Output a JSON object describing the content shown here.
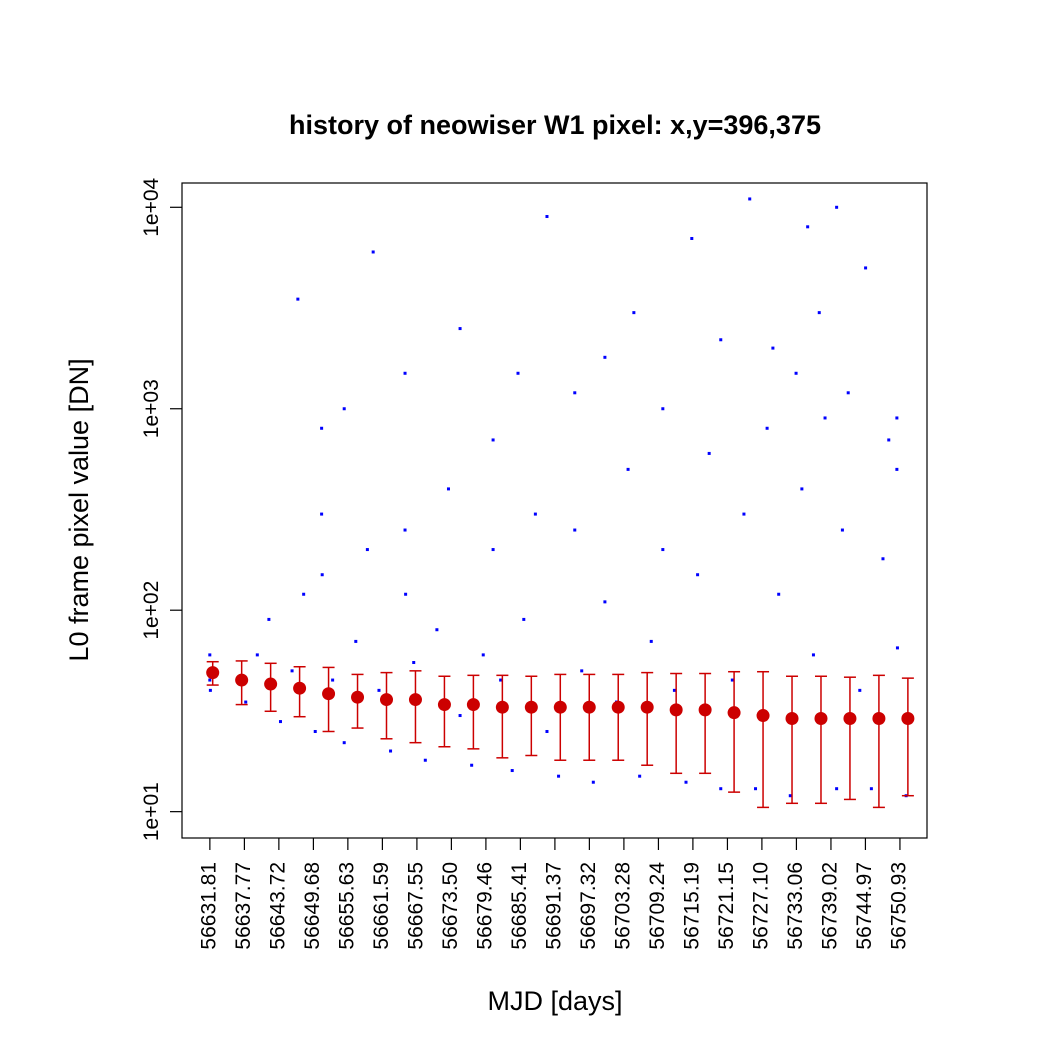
{
  "chart_data": {
    "type": "scatter",
    "title": "history of neowiser W1 pixel: x,y=396,375",
    "xlabel": "MJD [days]",
    "ylabel": "L0 frame pixel value [DN]",
    "xlim": [
      56627.0,
      56755.6
    ],
    "ylim": [
      7.4,
      13200
    ],
    "ylog": true,
    "xticks": [
      56631.81,
      56637.77,
      56643.72,
      56649.68,
      56655.63,
      56661.59,
      56667.55,
      {
        "value": 56673.5,
        "label": "56673.50"
      },
      56679.46,
      56685.41,
      56691.37,
      56697.32,
      56703.28,
      56709.24,
      56715.19,
      56721.15,
      {
        "value": 56727.1,
        "label": "56727.10"
      },
      56733.06,
      56739.02,
      56744.97,
      56750.93
    ],
    "yticks": [
      {
        "value": 10,
        "label": "1e+01"
      },
      {
        "value": 100,
        "label": "1e+02"
      },
      {
        "value": 1000,
        "label": "1e+03"
      },
      {
        "value": 10000,
        "label": "1e+04"
      }
    ],
    "series": [
      {
        "color": "#0000ff",
        "x": [
          56638,
          56640,
          56642,
          56644,
          56646,
          56648,
          56650,
          56651.1,
          56651.1,
          56651.2,
          56653,
          56655,
          56657,
          56659,
          56661,
          56663,
          56665.5,
          56665.5,
          56665.6,
          56667,
          56669,
          56671,
          56673,
          56675,
          56677,
          56679,
          56680.7,
          56680.7,
          56682,
          56684,
          56686,
          56688,
          56690,
          56692,
          56694.8,
          56694.8,
          56696,
          56698,
          56700,
          56702,
          56704,
          56706,
          56708,
          56710,
          56710,
          56712,
          56714,
          56716,
          56718,
          56720,
          56722,
          56724,
          56726,
          56728,
          56729,
          56730,
          56732,
          56733,
          56734,
          56736,
          56737,
          56738,
          56740,
          56741,
          56742,
          56744,
          56745,
          56746,
          56748,
          56749,
          56750.4,
          56750.4,
          56750.5,
          56752,
          56647,
          56660,
          56675,
          56690,
          56700,
          56715,
          56725,
          56740,
          56655,
          56685,
          56705,
          56720,
          56735,
          56631.8,
          56631.8,
          56631.9
        ],
        "values": [
          35,
          60,
          90,
          28,
          50,
          120,
          25,
          300,
          800,
          150,
          45,
          22,
          70,
          200,
          40,
          20,
          250,
          1500,
          120,
          55,
          18,
          80,
          400,
          30,
          17,
          60,
          700,
          200,
          45,
          16,
          90,
          300,
          25,
          15,
          1200,
          250,
          50,
          14,
          110,
          35,
          500,
          15,
          70,
          1000,
          200,
          40,
          14,
          150,
          600,
          13,
          45,
          300,
          13,
          800,
          2000,
          120,
          12,
          1500,
          400,
          60,
          3000,
          900,
          13,
          250,
          1200,
          40,
          5000,
          13,
          180,
          700,
          500,
          900,
          65,
          12,
          3500,
          6000,
          2500,
          9000,
          1800,
          7000,
          11000,
          10000,
          1000,
          1500,
          3000,
          2200,
          8000,
          45,
          60,
          40
        ]
      },
      {
        "color": "#cc0000",
        "x": [
          56632.3,
          56637.3,
          56642.3,
          56647.3,
          56652.3,
          56657.3,
          56662.3,
          56667.3,
          56672.3,
          56677.3,
          56682.3,
          56687.3,
          56692.3,
          56697.3,
          56702.3,
          56707.3,
          56712.3,
          56717.3,
          56722.3,
          56727.3,
          56732.3,
          56737.3,
          56742.3,
          56747.3,
          56752.3
        ],
        "values": [
          49,
          45,
          43,
          41,
          38.5,
          37,
          36,
          36,
          34,
          34,
          33,
          33,
          33,
          33,
          33,
          33,
          32,
          32,
          31,
          30,
          29,
          29,
          29,
          29,
          29
        ],
        "errors": [
          6.5,
          11,
          11.5,
          11.4,
          13.5,
          11,
          13,
          14,
          13,
          13.5,
          14.5,
          14,
          15,
          15,
          15,
          16,
          16.5,
          16.5,
          18.5,
          19.5,
          18,
          18,
          17.5,
          18.5,
          17
        ]
      }
    ]
  }
}
